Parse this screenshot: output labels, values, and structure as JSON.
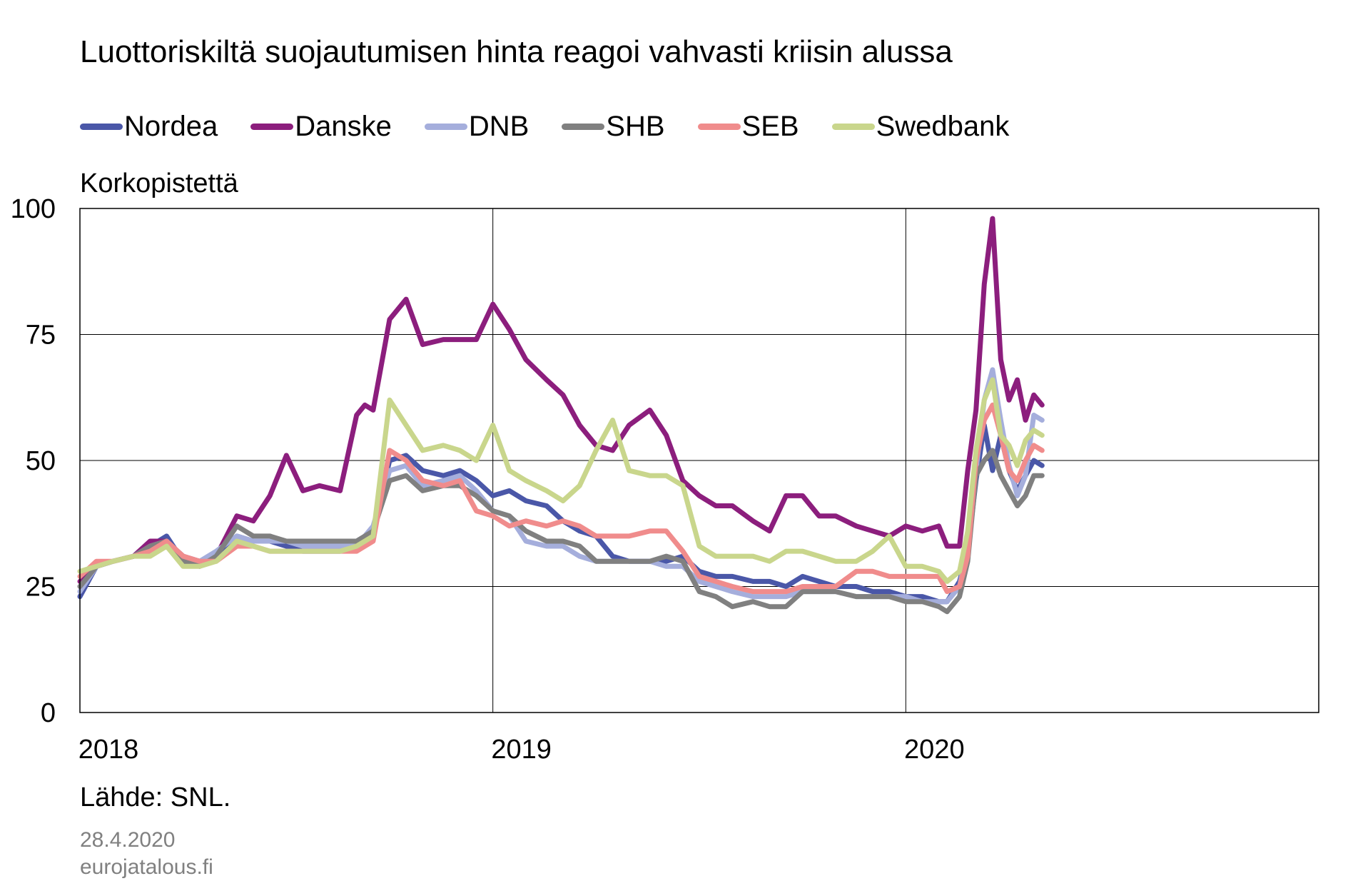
{
  "chart_data": {
    "type": "line",
    "title": "Luottoriskiltä suojautumisen hinta reagoi vahvasti kriisin alussa",
    "unit_label": "Korkopistettä",
    "ylim": [
      0,
      100
    ],
    "yticks": [
      "0",
      "25",
      "50",
      "75",
      "100"
    ],
    "xlim": [
      2018.0,
      2021.0
    ],
    "xticks": [
      {
        "value": 2018.0,
        "label": "2018"
      },
      {
        "value": 2019.0,
        "label": "2019"
      },
      {
        "value": 2020.0,
        "label": "2020"
      }
    ],
    "grid": true,
    "legend_position": "top",
    "x": [
      2018.0,
      2018.04,
      2018.08,
      2018.13,
      2018.17,
      2018.21,
      2018.25,
      2018.29,
      2018.33,
      2018.38,
      2018.42,
      2018.46,
      2018.5,
      2018.54,
      2018.58,
      2018.63,
      2018.67,
      2018.69,
      2018.71,
      2018.75,
      2018.79,
      2018.83,
      2018.88,
      2018.92,
      2018.96,
      2019.0,
      2019.04,
      2019.08,
      2019.13,
      2019.17,
      2019.21,
      2019.25,
      2019.29,
      2019.33,
      2019.38,
      2019.42,
      2019.46,
      2019.5,
      2019.54,
      2019.58,
      2019.63,
      2019.67,
      2019.71,
      2019.75,
      2019.79,
      2019.83,
      2019.88,
      2019.92,
      2019.96,
      2020.0,
      2020.04,
      2020.08,
      2020.1,
      2020.13,
      2020.15,
      2020.17,
      2020.19,
      2020.21,
      2020.23,
      2020.25,
      2020.27,
      2020.29,
      2020.31,
      2020.33
    ],
    "series": [
      {
        "name": "Nordea",
        "color": "#4a57a8",
        "values": [
          23,
          29,
          30,
          31,
          33,
          35,
          30,
          30,
          31,
          35,
          34,
          34,
          33,
          32,
          32,
          32,
          33,
          34,
          36,
          50,
          51,
          48,
          47,
          48,
          46,
          43,
          44,
          42,
          41,
          38,
          36,
          35,
          31,
          30,
          30,
          30,
          31,
          28,
          27,
          27,
          26,
          26,
          25,
          27,
          26,
          25,
          25,
          24,
          24,
          23,
          23,
          22,
          22,
          26,
          32,
          46,
          57,
          48,
          55,
          48,
          44,
          47,
          50,
          49
        ]
      },
      {
        "name": "Danske",
        "color": "#8c1e7d",
        "values": [
          26,
          29,
          30,
          31,
          34,
          34,
          31,
          30,
          31,
          39,
          38,
          43,
          51,
          44,
          45,
          44,
          59,
          61,
          60,
          78,
          82,
          73,
          74,
          74,
          74,
          81,
          76,
          70,
          66,
          63,
          57,
          53,
          52,
          57,
          60,
          55,
          46,
          43,
          41,
          41,
          38,
          36,
          43,
          43,
          39,
          39,
          37,
          36,
          35,
          37,
          36,
          37,
          33,
          33,
          48,
          60,
          85,
          98,
          70,
          62,
          66,
          58,
          63,
          61
        ]
      },
      {
        "name": "DNB",
        "color": "#a5aedc",
        "values": [
          24,
          29,
          30,
          31,
          33,
          34,
          30,
          30,
          32,
          35,
          34,
          34,
          34,
          33,
          33,
          33,
          34,
          35,
          37,
          48,
          49,
          45,
          46,
          47,
          44,
          40,
          39,
          34,
          33,
          33,
          31,
          30,
          30,
          30,
          30,
          29,
          29,
          26,
          25,
          24,
          23,
          23,
          23,
          24,
          24,
          24,
          23,
          23,
          23,
          23,
          22,
          22,
          22,
          25,
          33,
          48,
          62,
          68,
          58,
          49,
          43,
          47,
          59,
          58
        ]
      },
      {
        "name": "SHB",
        "color": "#808080",
        "values": [
          25,
          29,
          30,
          31,
          33,
          34,
          30,
          29,
          31,
          37,
          35,
          35,
          34,
          34,
          34,
          34,
          34,
          35,
          36,
          46,
          47,
          44,
          45,
          45,
          43,
          40,
          39,
          36,
          34,
          34,
          33,
          30,
          30,
          30,
          30,
          31,
          30,
          24,
          23,
          21,
          22,
          21,
          21,
          24,
          24,
          24,
          23,
          23,
          23,
          22,
          22,
          21,
          20,
          23,
          30,
          47,
          50,
          52,
          47,
          44,
          41,
          43,
          47,
          47
        ]
      },
      {
        "name": "SEB",
        "color": "#f08c8c",
        "values": [
          27,
          30,
          30,
          31,
          32,
          34,
          31,
          30,
          30,
          33,
          33,
          32,
          32,
          32,
          32,
          32,
          32,
          33,
          34,
          52,
          50,
          46,
          45,
          46,
          40,
          39,
          37,
          38,
          37,
          38,
          37,
          35,
          35,
          35,
          36,
          36,
          32,
          27,
          26,
          25,
          24,
          24,
          24,
          25,
          25,
          25,
          28,
          28,
          27,
          27,
          27,
          27,
          24,
          25,
          31,
          50,
          58,
          61,
          55,
          48,
          46,
          50,
          53,
          52
        ]
      },
      {
        "name": "Swedbank",
        "color": "#c9d68c",
        "values": [
          28,
          29,
          30,
          31,
          31,
          33,
          29,
          29,
          30,
          34,
          33,
          32,
          32,
          32,
          32,
          32,
          33,
          34,
          35,
          62,
          57,
          52,
          53,
          52,
          50,
          57,
          48,
          46,
          44,
          42,
          45,
          52,
          58,
          48,
          47,
          47,
          45,
          33,
          31,
          31,
          31,
          30,
          32,
          32,
          31,
          30,
          30,
          32,
          35,
          29,
          29,
          28,
          26,
          28,
          36,
          52,
          62,
          66,
          55,
          53,
          49,
          54,
          56,
          55
        ]
      }
    ]
  },
  "source": "Lähde: SNL.",
  "date": "28.4.2020",
  "site": "eurojatalous.fi"
}
